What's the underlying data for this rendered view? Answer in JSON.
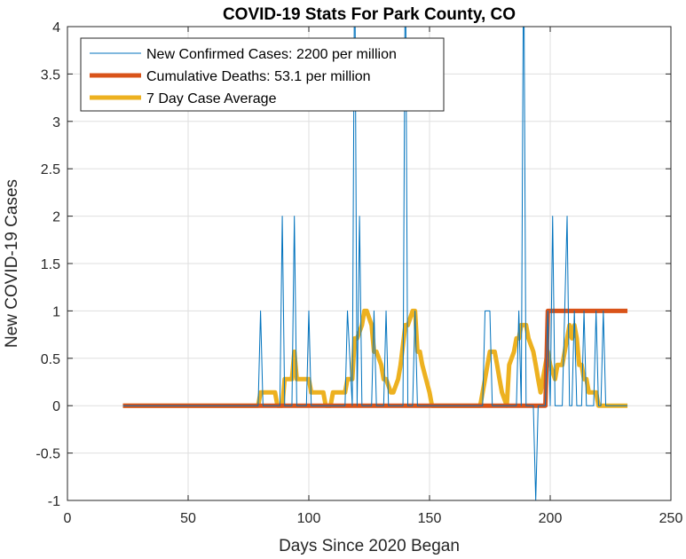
{
  "chart_data": {
    "type": "line",
    "title": "COVID-19 Stats For Park County, CO",
    "xlabel": "Days Since 2020 Began",
    "ylabel": "New COVID-19 Cases",
    "xlim": [
      0,
      250
    ],
    "ylim": [
      -1,
      4
    ],
    "xticks": [
      0,
      50,
      100,
      150,
      200,
      250
    ],
    "yticks": [
      -1,
      -0.5,
      0,
      0.5,
      1,
      1.5,
      2,
      2.5,
      3,
      3.5,
      4
    ],
    "xtick_labels": [
      "0",
      "50",
      "100",
      "150",
      "200",
      "250"
    ],
    "ytick_labels": [
      "-1",
      "-0.5",
      "0",
      "0.5",
      "1",
      "1.5",
      "2",
      "2.5",
      "3",
      "3.5",
      "4"
    ],
    "grid": true,
    "legend_position": "top-left",
    "series": [
      {
        "name": "New Confirmed Cases: 2200 per million",
        "color": "#0072BD",
        "x": [
          23,
          79,
          80,
          81,
          88,
          89,
          90,
          93,
          94,
          95,
          99,
          100,
          101,
          115,
          116,
          118,
          119,
          120,
          121,
          122,
          123,
          126,
          127,
          128,
          131,
          132,
          133,
          139,
          140,
          141,
          143,
          144,
          145,
          172,
          173,
          174,
          175,
          176,
          186,
          187,
          188,
          189,
          190,
          191,
          193,
          194,
          195,
          198,
          199,
          200,
          201,
          202,
          203,
          205,
          206,
          207,
          208,
          209,
          210,
          211,
          213,
          214,
          215,
          218,
          219,
          220,
          221,
          222,
          223,
          224,
          232
        ],
        "y": [
          0,
          0,
          1,
          0,
          0,
          2,
          0,
          0,
          2,
          0,
          0,
          1,
          0,
          0,
          1,
          0,
          5,
          0,
          2,
          0,
          0,
          0,
          1,
          0,
          0,
          1,
          0,
          0,
          5,
          0,
          0,
          1,
          0,
          0,
          1,
          1,
          1,
          0,
          0,
          1,
          0,
          5,
          0,
          0,
          0,
          -1,
          0,
          0,
          1,
          0,
          2,
          0,
          0,
          0,
          1,
          2,
          0,
          0,
          1,
          0,
          0,
          1,
          0,
          0,
          1,
          0,
          0,
          1,
          0,
          0,
          0
        ]
      },
      {
        "name": "Cumulative Deaths: 53.1 per million",
        "color": "#D95319",
        "x": [
          23,
          198,
          199,
          232
        ],
        "y": [
          0,
          0,
          1,
          1
        ]
      },
      {
        "name": "7 Day Case Average",
        "color": "#EDB120",
        "x": [
          23,
          79,
          80,
          86,
          87,
          89,
          90,
          93,
          94,
          95,
          96,
          100,
          101,
          106,
          107,
          109,
          110,
          115,
          116,
          118,
          119,
          120,
          122,
          123,
          124,
          126,
          127,
          128,
          130,
          131,
          132,
          134,
          135,
          137,
          138,
          140,
          141,
          143,
          144,
          145,
          146,
          147,
          150,
          151,
          171,
          172,
          173,
          174,
          175,
          176,
          177,
          178,
          179,
          180,
          182,
          183,
          185,
          186,
          187,
          188,
          189,
          190,
          191,
          193,
          194,
          195,
          196,
          198,
          199,
          200,
          202,
          203,
          204,
          205,
          206,
          207,
          208,
          209,
          210,
          211,
          212,
          213,
          214,
          215,
          216,
          217,
          218,
          219,
          220,
          221,
          222,
          223,
          224,
          225,
          232
        ],
        "y": [
          0,
          0,
          0.14,
          0.14,
          0,
          0,
          0.28,
          0.28,
          0.57,
          0.28,
          0.28,
          0.28,
          0.14,
          0.14,
          0,
          0,
          0.14,
          0.14,
          0.28,
          0.28,
          0.71,
          0.71,
          0.85,
          1,
          1,
          0.85,
          0.57,
          0.57,
          0.43,
          0.28,
          0.28,
          0.14,
          0.14,
          0.28,
          0.43,
          0.85,
          0.85,
          1,
          1,
          0.57,
          0.57,
          0.43,
          0.14,
          0,
          0,
          0.14,
          0.28,
          0.43,
          0.57,
          0.57,
          0.57,
          0.43,
          0.28,
          0.14,
          0,
          0.43,
          0.57,
          0.71,
          0.71,
          0.85,
          0.85,
          0.85,
          0.71,
          0.57,
          0.43,
          0.28,
          0.14,
          0.43,
          0.57,
          0.43,
          0.28,
          0.43,
          0.43,
          0.43,
          0.57,
          0.71,
          0.85,
          0.71,
          0.85,
          0.71,
          0.43,
          0.43,
          0.28,
          0.28,
          0.14,
          0.14,
          0.14,
          0.14,
          0,
          0,
          0,
          0,
          0,
          0,
          0
        ]
      }
    ]
  }
}
